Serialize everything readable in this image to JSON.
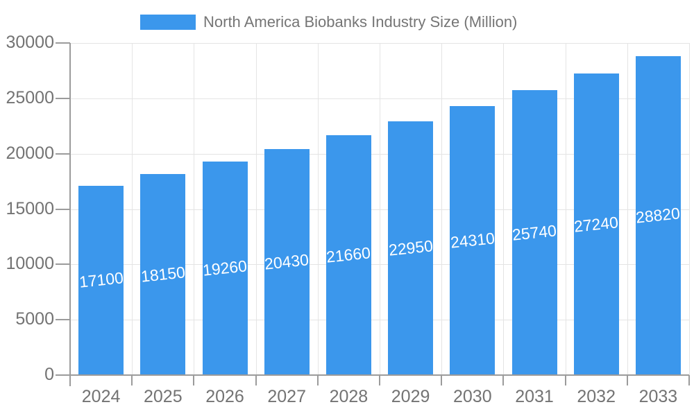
{
  "chart_data": {
    "type": "bar",
    "title": "North America Biobanks Industry Size (Million)",
    "categories": [
      "2024",
      "2025",
      "2026",
      "2027",
      "2028",
      "2029",
      "2030",
      "2031",
      "2032",
      "2033"
    ],
    "values": [
      17100,
      18150,
      19260,
      20430,
      21660,
      22950,
      24310,
      25740,
      27240,
      28820
    ],
    "data_labels": [
      "17100",
      "18150",
      "19260",
      "20430",
      "21660",
      "22950",
      "24310",
      "25740",
      "27240",
      "28820"
    ],
    "xlabel": "",
    "ylabel": "",
    "ylim": [
      0,
      30000
    ],
    "yticks": [
      0,
      5000,
      10000,
      15000,
      20000,
      25000,
      30000
    ],
    "ytick_labels": [
      "0",
      "5000",
      "10000",
      "15000",
      "20000",
      "25000",
      "30000"
    ],
    "grid": "on",
    "legend_position": "top",
    "colors": {
      "bar": "#3B97EC",
      "data_label": "#FFFFFF",
      "axis_text": "#737373",
      "legend_text": "#757575",
      "gridline": "#E4E4E4",
      "axis_line": "#9B9B9B"
    }
  }
}
